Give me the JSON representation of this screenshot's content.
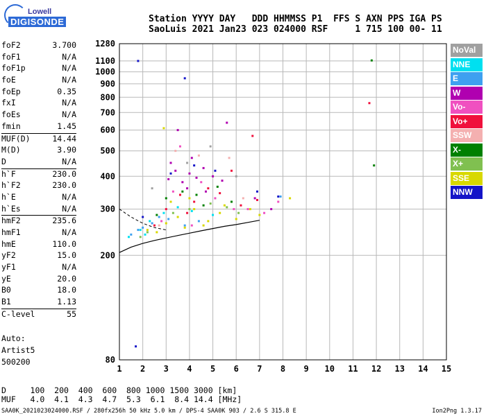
{
  "logo": {
    "top": "Lowell",
    "bottom": "DIGISONDE"
  },
  "header": {
    "line1": "Station YYYY DAY   DDD HHMMSS P1  FFS S AXN PPS IGA PS",
    "line2": "SaoLuis 2021 Jan23 023 024000 RSF     1 715 100 00- 11"
  },
  "params": [
    {
      "label": "foF2",
      "value": "3.700"
    },
    {
      "label": "foF1",
      "value": "N/A"
    },
    {
      "label": "foF1p",
      "value": "N/A"
    },
    {
      "label": "foE",
      "value": "N/A"
    },
    {
      "label": "foEp",
      "value": "0.35"
    },
    {
      "label": "fxI",
      "value": "N/A"
    },
    {
      "label": "foEs",
      "value": "N/A"
    },
    {
      "label": "fmin",
      "value": "1.45"
    },
    {
      "label": "MUF(D)",
      "value": "14.44"
    },
    {
      "label": "M(D)",
      "value": "3.90"
    },
    {
      "label": "D",
      "value": "N/A"
    },
    {
      "label": "h`F",
      "value": "230.0"
    },
    {
      "label": "h`F2",
      "value": "230.0"
    },
    {
      "label": "h`E",
      "value": "N/A"
    },
    {
      "label": "h`Es",
      "value": "N/A"
    },
    {
      "label": "hmF2",
      "value": "235.6"
    },
    {
      "label": "hmF1",
      "value": "N/A"
    },
    {
      "label": "hmE",
      "value": "110.0"
    },
    {
      "label": "yF2",
      "value": "15.0"
    },
    {
      "label": "yF1",
      "value": "N/A"
    },
    {
      "label": "yE",
      "value": "20.0"
    },
    {
      "label": "B0",
      "value": "18.0"
    },
    {
      "label": "B1",
      "value": "1.13"
    },
    {
      "label": "C-level",
      "value": "55"
    }
  ],
  "auto": {
    "l1": "Auto:",
    "l2": "Artist5",
    "l3": "500200"
  },
  "legend": [
    {
      "label": "NoVal",
      "color": "#a0a0a0"
    },
    {
      "label": "NNE",
      "color": "#00e0f0"
    },
    {
      "label": "E",
      "color": "#3ea0f0"
    },
    {
      "label": "W",
      "color": "#b000b0"
    },
    {
      "label": "Vo-",
      "color": "#f050c0"
    },
    {
      "label": "Vo+",
      "color": "#f0103c"
    },
    {
      "label": "SSW",
      "color": "#f4b0b0"
    },
    {
      "label": "X-",
      "color": "#008000"
    },
    {
      "label": "X+",
      "color": "#80c050"
    },
    {
      "label": "SSE",
      "color": "#d8d800"
    },
    {
      "label": "NNW",
      "color": "#1414c8"
    }
  ],
  "muf_table": {
    "row1": "D     100  200  400  600  800 1000 1500 3000 [km]",
    "row2": "MUF   4.0  4.1  4.3  4.7  5.3  6.1  8.4 14.4 [MHz]"
  },
  "footer": {
    "left": "SAA0K_2021023024000.RSF / 280fx256h 50 kHz 5.0 km / DPS-4 SAA0K 903 / 2.6 S 315.8 E",
    "right": "Ion2Png 1.3.17"
  },
  "chart_data": {
    "type": "scatter",
    "title": "",
    "xlabel": "",
    "ylabel": "",
    "xlim": [
      1,
      15
    ],
    "ylim": [
      80,
      1280
    ],
    "yscale": "log",
    "grid": true,
    "xticks": [
      "1",
      "2",
      "3",
      "4",
      "5",
      "6",
      "7",
      "8",
      "9",
      "10",
      "11",
      "12",
      "13",
      "14",
      "15"
    ],
    "yticks": [
      "80",
      "200",
      "300",
      "400",
      "500",
      "600",
      "700",
      "800",
      "900",
      "1000",
      "1100",
      "1280"
    ],
    "series": [
      {
        "name": "SSE",
        "color": "#d8d800",
        "points": [
          [
            2.2,
            250
          ],
          [
            3.0,
            265
          ],
          [
            3.5,
            280
          ],
          [
            4.2,
            300
          ],
          [
            4.8,
            270
          ],
          [
            5.3,
            290
          ],
          [
            6.0,
            275
          ],
          [
            6.6,
            300
          ],
          [
            7.0,
            285
          ],
          [
            3.2,
            320
          ],
          [
            4.0,
            330
          ],
          [
            5.5,
            310
          ],
          [
            2.6,
            245
          ],
          [
            3.8,
            255
          ],
          [
            8.3,
            330
          ],
          [
            2.9,
            610
          ],
          [
            4.6,
            260
          ]
        ]
      },
      {
        "name": "W",
        "color": "#b000b0",
        "points": [
          [
            3.1,
            390
          ],
          [
            3.4,
            420
          ],
          [
            3.7,
            380
          ],
          [
            4.0,
            410
          ],
          [
            4.3,
            395
          ],
          [
            4.6,
            430
          ],
          [
            5.0,
            400
          ],
          [
            5.4,
            385
          ],
          [
            3.2,
            450
          ],
          [
            4.1,
            470
          ],
          [
            3.5,
            600
          ],
          [
            5.6,
            640
          ],
          [
            6.8,
            330
          ],
          [
            7.5,
            300
          ],
          [
            3.9,
            360
          ],
          [
            4.7,
            350
          ]
        ]
      },
      {
        "name": "Vo+",
        "color": "#f0103c",
        "points": [
          [
            3.0,
            300
          ],
          [
            3.6,
            340
          ],
          [
            4.2,
            320
          ],
          [
            4.8,
            360
          ],
          [
            5.3,
            345
          ],
          [
            6.2,
            310
          ],
          [
            6.9,
            325
          ],
          [
            2.5,
            260
          ],
          [
            3.9,
            290
          ],
          [
            11.7,
            760
          ],
          [
            6.7,
            570
          ],
          [
            5.8,
            420
          ]
        ]
      },
      {
        "name": "Vo-",
        "color": "#f050c0",
        "points": [
          [
            3.3,
            350
          ],
          [
            4.5,
            380
          ],
          [
            5.1,
            330
          ],
          [
            6.5,
            300
          ],
          [
            7.2,
            290
          ],
          [
            2.8,
            270
          ],
          [
            4.1,
            260
          ],
          [
            5.9,
            300
          ],
          [
            7.8,
            320
          ],
          [
            3.6,
            520
          ]
        ]
      },
      {
        "name": "E",
        "color": "#3ea0f0",
        "points": [
          [
            1.5,
            240
          ],
          [
            2.0,
            255
          ],
          [
            2.4,
            265
          ],
          [
            3.1,
            275
          ],
          [
            3.8,
            260
          ],
          [
            4.4,
            270
          ],
          [
            1.8,
            250
          ],
          [
            2.7,
            280
          ],
          [
            7.9,
            335
          ]
        ]
      },
      {
        "name": "NNE",
        "color": "#00e0f0",
        "points": [
          [
            1.4,
            235
          ],
          [
            1.9,
            250
          ],
          [
            2.3,
            270
          ],
          [
            2.9,
            290
          ],
          [
            3.5,
            305
          ],
          [
            4.1,
            295
          ],
          [
            5.0,
            285
          ],
          [
            2.1,
            240
          ]
        ]
      },
      {
        "name": "X-",
        "color": "#008000",
        "points": [
          [
            3.0,
            330
          ],
          [
            3.7,
            350
          ],
          [
            4.3,
            340
          ],
          [
            5.2,
            365
          ],
          [
            2.6,
            285
          ],
          [
            11.9,
            440
          ],
          [
            11.8,
            1105
          ],
          [
            5.8,
            320
          ],
          [
            4.6,
            310
          ]
        ]
      },
      {
        "name": "X+",
        "color": "#80c050",
        "points": [
          [
            2.2,
            245
          ],
          [
            3.3,
            290
          ],
          [
            4.0,
            300
          ],
          [
            4.9,
            315
          ],
          [
            5.6,
            305
          ],
          [
            1.9,
            235
          ],
          [
            6.1,
            290
          ]
        ]
      },
      {
        "name": "NNW",
        "color": "#1414c8",
        "points": [
          [
            3.2,
            410
          ],
          [
            4.2,
            440
          ],
          [
            5.1,
            420
          ],
          [
            2.0,
            280
          ],
          [
            6.9,
            350
          ],
          [
            1.8,
            1100
          ],
          [
            3.8,
            945
          ],
          [
            7.8,
            335
          ],
          [
            1.7,
            90
          ]
        ]
      },
      {
        "name": "SSW",
        "color": "#f4b0b0",
        "points": [
          [
            3.4,
            500
          ],
          [
            4.4,
            480
          ],
          [
            5.7,
            470
          ],
          [
            2.7,
            260
          ],
          [
            6.3,
            330
          ]
        ]
      },
      {
        "name": "NoVal",
        "color": "#a0a0a0",
        "points": [
          [
            2.4,
            360
          ],
          [
            3.9,
            450
          ],
          [
            4.9,
            520
          ],
          [
            6.0,
            400
          ]
        ]
      }
    ],
    "trace_curve": {
      "x": [
        1.0,
        1.5,
        2.0,
        2.5,
        3.0,
        3.5,
        4.0,
        4.5,
        5.0,
        5.5,
        6.0,
        6.5,
        7.0
      ],
      "y": [
        205,
        215,
        222,
        228,
        233,
        238,
        243,
        248,
        253,
        258,
        262,
        267,
        272
      ]
    },
    "trace_dashed": {
      "x": [
        1.0,
        1.5,
        2.0,
        2.5,
        3.0
      ],
      "y": [
        300,
        280,
        265,
        255,
        250
      ]
    }
  }
}
